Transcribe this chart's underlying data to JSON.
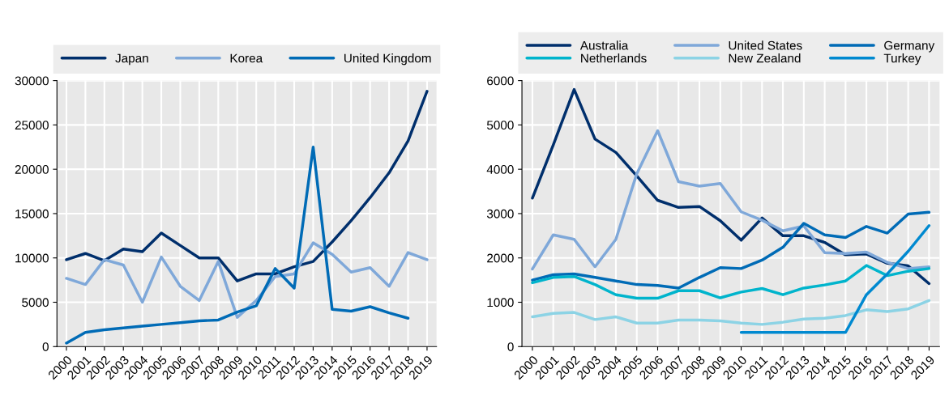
{
  "chart_data": [
    {
      "type": "line",
      "categories": [
        "2000",
        "2001",
        "2002",
        "2003",
        "2004",
        "2005",
        "2006",
        "2007",
        "2008",
        "2009",
        "2010",
        "2011",
        "2012",
        "2013",
        "2014",
        "2015",
        "2016",
        "2017",
        "2018",
        "2019"
      ],
      "ylim": [
        0,
        30000
      ],
      "yticks": [
        0,
        5000,
        10000,
        15000,
        20000,
        25000,
        30000
      ],
      "grid": true,
      "legend": "top",
      "series": [
        {
          "name": "Japan",
          "color": "#002f6c",
          "values": [
            9800,
            10500,
            9700,
            11000,
            10700,
            12800,
            11400,
            10000,
            10000,
            7400,
            8200,
            8200,
            9000,
            9600,
            11800,
            14200,
            16800,
            19600,
            23200,
            28800
          ]
        },
        {
          "name": "Korea",
          "color": "#7fa8d9",
          "values": [
            7700,
            7000,
            9800,
            9200,
            5000,
            10100,
            6800,
            5200,
            9600,
            3300,
            5200,
            7900,
            8200,
            11700,
            10400,
            8400,
            8900,
            6800,
            10600,
            9800
          ]
        },
        {
          "name": "United Kingdom",
          "color": "#006bb6",
          "values": [
            400,
            1600,
            1900,
            2100,
            2300,
            2500,
            2700,
            2900,
            3000,
            3900,
            4600,
            8800,
            6600,
            22500,
            4200,
            4000,
            4500,
            3800,
            3200,
            null
          ]
        }
      ]
    },
    {
      "type": "line",
      "categories": [
        "2000",
        "2001",
        "2002",
        "2003",
        "2004",
        "2005",
        "2006",
        "2007",
        "2008",
        "2009",
        "2010",
        "2011",
        "2012",
        "2013",
        "2014",
        "2015",
        "2016",
        "2017",
        "2018",
        "2019"
      ],
      "ylim": [
        0,
        6000
      ],
      "yticks": [
        0,
        1000,
        2000,
        3000,
        4000,
        5000,
        6000
      ],
      "grid": true,
      "legend": "top",
      "series": [
        {
          "name": "Australia",
          "color": "#002f6c",
          "values": [
            3350,
            4550,
            5800,
            4680,
            4380,
            3850,
            3300,
            3140,
            3160,
            2840,
            2400,
            2900,
            2500,
            2500,
            2350,
            2070,
            2090,
            1880,
            1820,
            1420
          ]
        },
        {
          "name": "United States",
          "color": "#7fa8d9",
          "values": [
            1750,
            2520,
            2420,
            1800,
            2420,
            3900,
            4870,
            3720,
            3620,
            3680,
            3040,
            2850,
            2610,
            2720,
            2120,
            2100,
            2130,
            1900,
            1760,
            1800
          ]
        },
        {
          "name": "Germany",
          "color": "#006bb6",
          "values": [
            1500,
            1620,
            1640,
            1560,
            1480,
            1400,
            1380,
            1320,
            1560,
            1780,
            1760,
            1950,
            2240,
            2780,
            2520,
            2460,
            2710,
            2560,
            2990,
            3030
          ]
        },
        {
          "name": "Netherlands",
          "color": "#00b4cc",
          "values": [
            1440,
            1560,
            1580,
            1400,
            1170,
            1090,
            1090,
            1260,
            1260,
            1100,
            1230,
            1310,
            1170,
            1320,
            1390,
            1480,
            1830,
            1600,
            1700,
            1760
          ]
        },
        {
          "name": "New Zealand",
          "color": "#8cd3e5",
          "values": [
            670,
            750,
            770,
            610,
            670,
            530,
            530,
            600,
            600,
            580,
            530,
            500,
            550,
            620,
            640,
            700,
            830,
            790,
            850,
            1040
          ]
        },
        {
          "name": "Turkey",
          "color": "#0089d0",
          "values": [
            null,
            null,
            null,
            null,
            null,
            null,
            null,
            null,
            null,
            null,
            320,
            320,
            320,
            320,
            320,
            320,
            1170,
            1640,
            2150,
            2730
          ]
        }
      ]
    }
  ]
}
